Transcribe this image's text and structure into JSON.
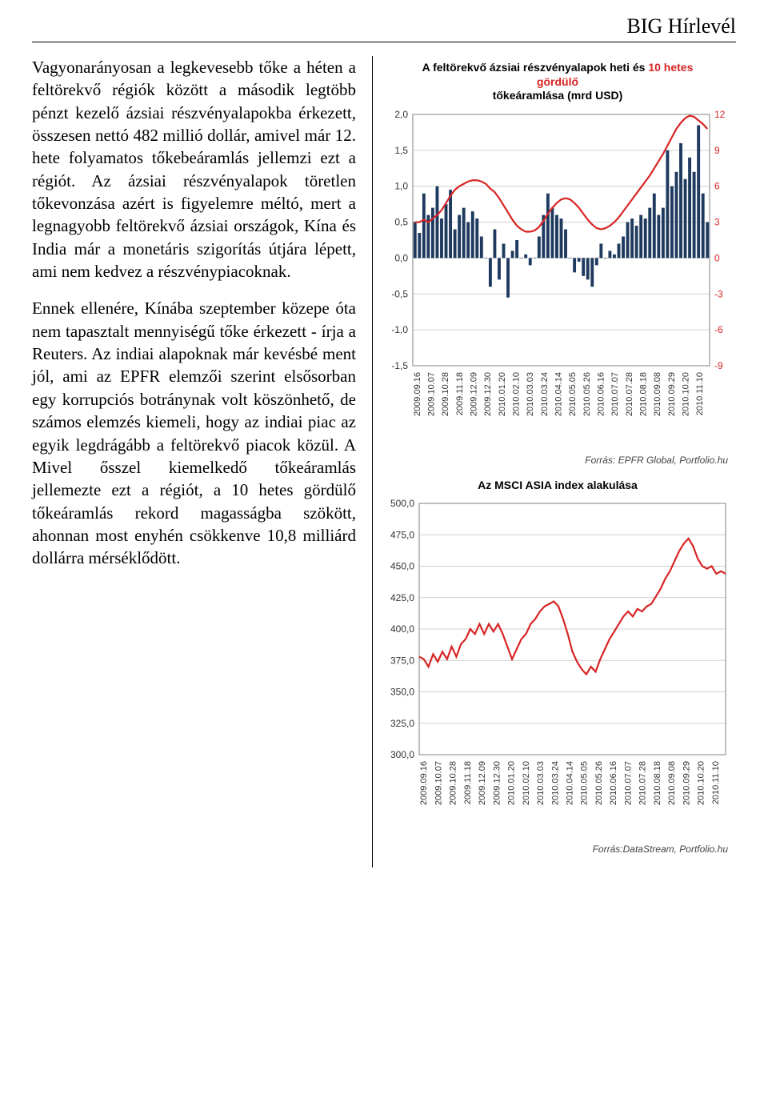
{
  "header": {
    "title": "BIG Hírlevél"
  },
  "article": {
    "p1": "Vagyonarányosan a legkevesebb tőke a héten a feltörekvő régiók között a második legtöbb pénzt kezelő ázsiai részvényalapokba érkezett, összesen nettó 482 millió dollár, amivel már 12. hete folyamatos tőkebeáramlás jellemzi ezt a régiót. Az ázsiai részvényalapok töretlen tőkevonzása azért is figyelemre méltó, mert a legnagyobb feltörekvő ázsiai országok, Kína és India már a monetáris szigorítás útjára lépett, ami nem kedvez a részvénypiacoknak.",
    "p2": "Ennek ellenére, Kínába szeptember közepe óta nem tapasztalt mennyiségű tőke érkezett - írja a Reuters. Az indiai alapoknak már kevésbé ment jól, ami az EPFR elemzői szerint elsősorban egy korrupciós botránynak volt köszönhető, de számos elemzés kiemeli, hogy az indiai piac az egyik legdrágább a feltörekvő piacok közül. A Mivel ősszel kiemelkedő tőkeáramlás jellemezte ezt a régiót, a 10 hetes gördülő tőkeáramlás rekord magasságba szökött, ahonnan most enyhén csökkenve 10,8 milliárd dollárra mérséklődött."
  },
  "chart1": {
    "title_black_1": "A feltörekvő ázsiai részvényalapok heti és ",
    "title_red": "10 hetes gördülő",
    "title_black_2": "tőkeáramlása (mrd USD)",
    "y_left": {
      "min": -1.5,
      "max": 2.0,
      "step": 0.5
    },
    "y_right": {
      "min": -9,
      "max": 12,
      "step": 3
    },
    "dates": [
      "2009.09.16",
      "2009.10.07",
      "2009.10.28",
      "2009.11.18",
      "2009.12.09",
      "2009.12.30",
      "2010.01.20",
      "2010.02.10",
      "2010.03.03",
      "2010.03.24",
      "2010.04.14",
      "2010.05.05",
      "2010.05.26",
      "2010.06.16",
      "2010.07.07",
      "2010.07.28",
      "2010.08.18",
      "2010.09.08",
      "2010.09.29",
      "2010.10.20",
      "2010.11.10"
    ],
    "bars": [
      0.5,
      0.35,
      0.9,
      0.6,
      0.7,
      1.0,
      0.55,
      0.75,
      0.95,
      0.4,
      0.6,
      0.7,
      0.5,
      0.65,
      0.55,
      0.3,
      0.0,
      -0.4,
      0.4,
      -0.3,
      0.2,
      -0.55,
      0.1,
      0.25,
      0.0,
      0.05,
      -0.1,
      0.0,
      0.3,
      0.6,
      0.9,
      0.7,
      0.6,
      0.55,
      0.4,
      0.0,
      -0.2,
      -0.05,
      -0.25,
      -0.3,
      -0.4,
      -0.1,
      0.2,
      0.0,
      0.1,
      0.05,
      0.2,
      0.3,
      0.5,
      0.55,
      0.45,
      0.6,
      0.55,
      0.7,
      0.9,
      0.6,
      0.7,
      1.5,
      1.0,
      1.2,
      1.6,
      1.1,
      1.4,
      1.2,
      1.85,
      0.9,
      0.5
    ],
    "ma": [
      3.0,
      3.0,
      3.2,
      3.0,
      3.3,
      3.6,
      4.0,
      4.6,
      5.2,
      5.7,
      6.0,
      6.2,
      6.4,
      6.5,
      6.5,
      6.4,
      6.2,
      5.8,
      5.5,
      5.0,
      4.4,
      3.8,
      3.2,
      2.7,
      2.4,
      2.2,
      2.2,
      2.3,
      2.6,
      3.1,
      3.7,
      4.2,
      4.6,
      4.9,
      5.0,
      4.9,
      4.6,
      4.2,
      3.7,
      3.2,
      2.8,
      2.5,
      2.4,
      2.5,
      2.7,
      3.0,
      3.4,
      3.9,
      4.4,
      4.9,
      5.4,
      5.9,
      6.4,
      6.9,
      7.5,
      8.1,
      8.7,
      9.4,
      10.1,
      10.8,
      11.3,
      11.7,
      11.9,
      11.8,
      11.5,
      11.2,
      10.8
    ],
    "y_left_labels": [
      "2,0",
      "1,5",
      "1,0",
      "0,5",
      "0,0",
      "-0,5",
      "-1,0",
      "-1,5"
    ],
    "y_right_labels": [
      "12",
      "9",
      "6",
      "3",
      "0",
      "-3",
      "-6",
      "-9"
    ],
    "source": "Forrás: EPFR Global, Portfolio.hu",
    "grid_color": "#d0d0d0",
    "bar_color": "#1f3a5f",
    "line_color": "#d82424"
  },
  "chart2": {
    "title": "Az MSCI ASIA index alakulása",
    "y": {
      "min": 300.0,
      "max": 500.0,
      "step": 25.0
    },
    "y_labels": [
      "500,0",
      "475,0",
      "450,0",
      "425,0",
      "400,0",
      "375,0",
      "350,0",
      "325,0",
      "300,0"
    ],
    "dates": [
      "2009.09.16",
      "2009.10.07",
      "2009.10.28",
      "2009.11.18",
      "2009.12.09",
      "2009.12.30",
      "2010.01.20",
      "2010.02.10",
      "2010.03.03",
      "2010.03.24",
      "2010.04.14",
      "2010.05.05",
      "2010.05.26",
      "2010.06.16",
      "2010.07.07",
      "2010.07.28",
      "2010.08.18",
      "2010.09.08",
      "2010.09.29",
      "2010.10.20",
      "2010.11.10"
    ],
    "values": [
      378,
      376,
      370,
      380,
      374,
      382,
      376,
      386,
      378,
      388,
      392,
      400,
      396,
      404,
      396,
      404,
      398,
      404,
      396,
      386,
      376,
      384,
      392,
      396,
      404,
      408,
      414,
      418,
      420,
      422,
      418,
      408,
      396,
      382,
      374,
      368,
      364,
      370,
      366,
      376,
      384,
      392,
      398,
      404,
      410,
      414,
      410,
      416,
      414,
      418,
      420,
      426,
      432,
      440,
      446,
      454,
      462,
      468,
      472,
      466,
      456,
      450,
      448,
      450,
      444,
      446,
      444
    ],
    "source": "Forrás:DataStream, Portfolio.hu",
    "grid_color": "#d0d0d0",
    "line_color": "#d82424"
  }
}
